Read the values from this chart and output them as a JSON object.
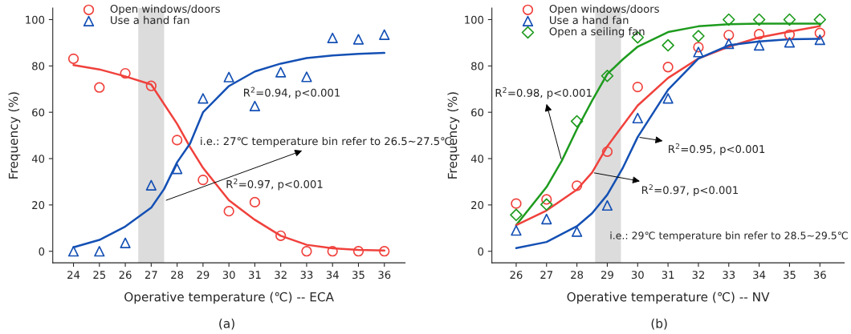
{
  "chart_data": [
    {
      "type": "scatter",
      "xlabel": "Operative temperature (℃) -- ECA",
      "ylabel": "Frequency (%)",
      "xlim": [
        23.2,
        36.8
      ],
      "ylim": [
        -5,
        105
      ],
      "xticks": [
        24,
        25,
        26,
        27,
        28,
        29,
        30,
        31,
        32,
        33,
        34,
        35,
        36
      ],
      "yticks": [
        0,
        20,
        40,
        60,
        80,
        100
      ],
      "grid": false,
      "legend": "top left",
      "series": [
        {
          "name": "Open windows/doors",
          "marker": "circle",
          "color": "#f0413c",
          "x": [
            24,
            25,
            26,
            27,
            28,
            29,
            30,
            31,
            32,
            33,
            34,
            35,
            36
          ],
          "values": [
            83.1,
            70.7,
            76.8,
            71.4,
            48.0,
            30.8,
            17.3,
            21.2,
            6.7,
            0,
            0,
            0,
            0
          ]
        },
        {
          "name": "Use a hand fan",
          "marker": "triangle",
          "color": "#1450b4",
          "x": [
            24,
            25,
            26,
            27,
            28,
            29,
            30,
            31,
            32,
            33,
            34,
            35,
            36
          ],
          "values": [
            0,
            0,
            3.6,
            28.5,
            35.6,
            66,
            75.2,
            62.7,
            77.3,
            75.3,
            92.1,
            91.5,
            93.5
          ]
        },
        {
          "type": "line",
          "color": "#f0413c",
          "x": [
            24,
            25,
            26,
            27,
            28,
            28.5,
            29,
            30,
            31,
            32,
            33,
            34,
            35,
            36
          ],
          "values": [
            80.4,
            78.5,
            75.5,
            72,
            55,
            45,
            36,
            22,
            13.6,
            6.7,
            2.8,
            1.3,
            0.6,
            0.3
          ]
        },
        {
          "type": "line",
          "color": "#1450b4",
          "x": [
            24,
            25,
            26,
            27,
            27.5,
            28,
            28.5,
            29,
            30,
            31,
            32,
            33,
            34,
            35,
            36
          ],
          "values": [
            1.7,
            4.9,
            10.7,
            18.8,
            26.9,
            38.4,
            46.5,
            60,
            71.3,
            77.6,
            81,
            83.4,
            84.5,
            85.2,
            85.6
          ]
        }
      ],
      "bands": [
        {
          "axis": "x",
          "from": 26.5,
          "to": 27.5,
          "color": "#dcdcdc"
        }
      ],
      "annotations": [
        "R$^{2}$=0.94, p<0.001",
        "R$^{2}$=0.97, p<0.001",
        {
          "text": "i.e.: 27℃ temperature bin refer to 26.5∼27.5℃",
          "x": 27.5,
          "y": 21.7
        },
        "(a)"
      ]
    },
    {
      "type": "scatter",
      "xlabel": "Operative temperature (℃) -- NV",
      "ylabel": "Frequency (%)",
      "xlim": [
        25.2,
        36.8
      ],
      "ylim": [
        -5,
        105
      ],
      "xticks": [
        26,
        27,
        28,
        29,
        30,
        31,
        32,
        33,
        34,
        35,
        36
      ],
      "yticks": [
        0,
        20,
        40,
        60,
        80,
        100
      ],
      "grid": false,
      "legend": "top left",
      "series": [
        {
          "name": "Open windows/doors",
          "marker": "circle",
          "color": "#f0413c",
          "x": [
            26,
            27,
            28,
            29,
            30,
            31,
            32,
            33,
            34,
            35,
            36
          ],
          "values": [
            20.6,
            22.4,
            28.3,
            43,
            70.9,
            79.5,
            88.1,
            93.3,
            93.7,
            93.5,
            94.2
          ]
        },
        {
          "name": "Use a hand fan",
          "marker": "triangle",
          "color": "#1450b4",
          "x": [
            26,
            27,
            28,
            29,
            30,
            31,
            32,
            33,
            34,
            35,
            36
          ],
          "values": [
            9.0,
            13.9,
            8.5,
            19.8,
            57.5,
            66,
            86,
            89.6,
            88.9,
            90.2,
            91.3
          ]
        },
        {
          "name": "Open a seiling fan",
          "marker": "diamond",
          "color": "#1e9b1e",
          "x": [
            26,
            27,
            28,
            29,
            30,
            31,
            32,
            33,
            34,
            35,
            36
          ],
          "values": [
            15.7,
            20.2,
            56.1,
            75.7,
            92.3,
            88.9,
            92.9,
            100,
            100,
            100,
            100
          ]
        },
        {
          "type": "line",
          "color": "#1e9b1e",
          "x": [
            26,
            27,
            27.5,
            28,
            28.5,
            29,
            29.5,
            30,
            31,
            32,
            33,
            34,
            35,
            36
          ],
          "values": [
            11.3,
            27.7,
            39,
            52.7,
            65,
            76.5,
            82.7,
            88.3,
            94.6,
            97.1,
            98,
            98.3,
            98.3,
            98.3
          ]
        },
        {
          "type": "line",
          "color": "#f0413c",
          "x": [
            26,
            27,
            28,
            28.5,
            29,
            30,
            31,
            32,
            33,
            34,
            35,
            36
          ],
          "values": [
            11.3,
            17.6,
            26.6,
            34,
            45.3,
            62.9,
            74.8,
            83.2,
            88.3,
            92.3,
            94.8,
            97.2
          ]
        },
        {
          "type": "line",
          "color": "#1450b4",
          "x": [
            26,
            27,
            28,
            28.5,
            29,
            29.5,
            30,
            30.5,
            31,
            32,
            33,
            34,
            35,
            36
          ],
          "values": [
            1.4,
            4,
            10.8,
            16.4,
            24.4,
            35.7,
            49.3,
            59.5,
            69.7,
            83.2,
            88.9,
            90.6,
            91.5,
            91.7
          ]
        }
      ],
      "bands": [
        {
          "axis": "x",
          "from": 28.6,
          "to": 29.45,
          "color": "#dcdcdc"
        }
      ],
      "annotations": [
        {
          "text": "R$^{2}$=0.98, p<0.001",
          "x": 27.5,
          "y": 39
        },
        {
          "text": "R$^{2}$=0.95, p<0.001",
          "x": 30,
          "y": 49.3
        },
        {
          "text": "R$^{2}$=0.97, p<0.001",
          "x": 28.5,
          "y": 34
        },
        "i.e.: 29℃ temperature bin refer to 28.5∼29.5℃",
        "(b)"
      ]
    }
  ]
}
